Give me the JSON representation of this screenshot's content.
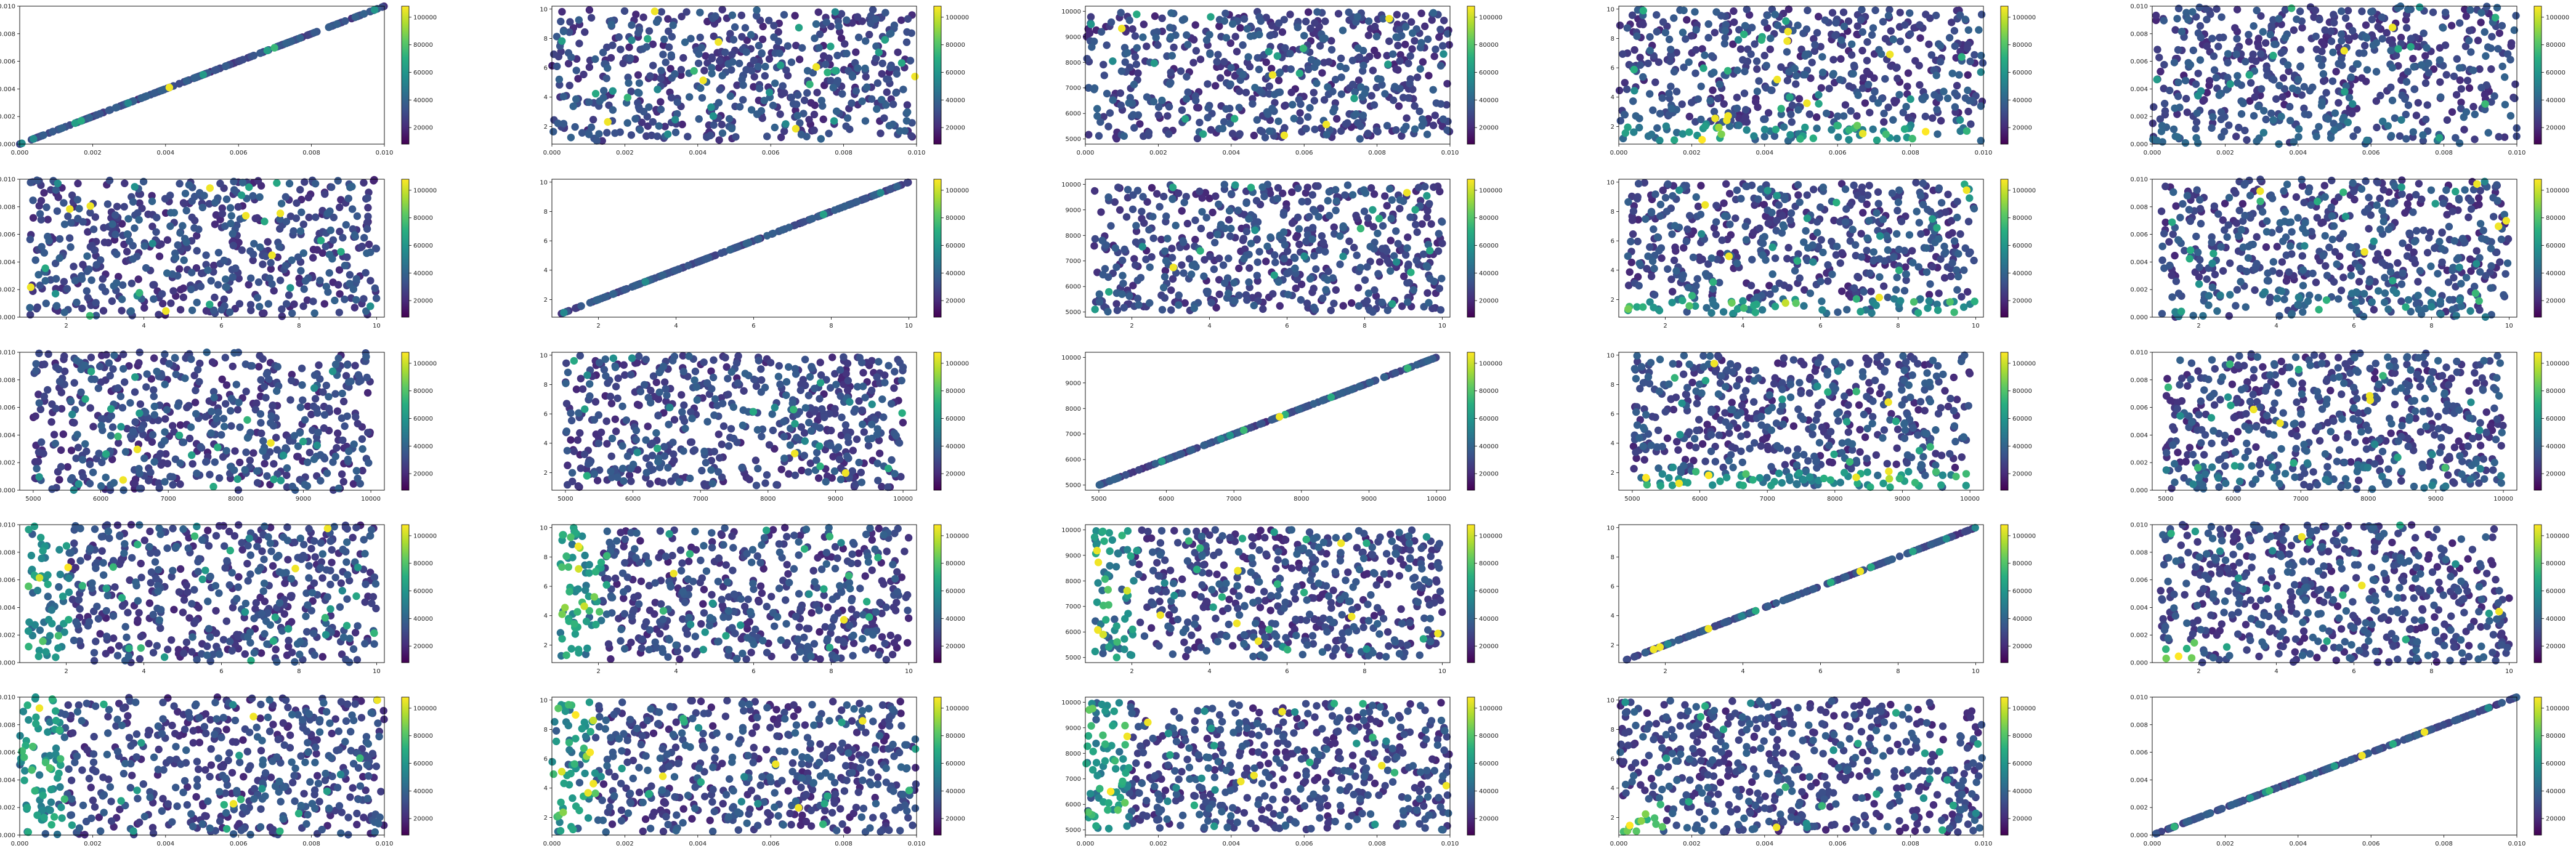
{
  "figure": {
    "rows": 5,
    "cols": 5,
    "colormap": "viridis",
    "colors": {
      "axes_edge": "#000000",
      "background": "#ffffff"
    }
  },
  "colorbar": {
    "min": 8000,
    "max": 108000,
    "ticks": [
      20000,
      40000,
      60000,
      80000,
      100000
    ],
    "tick_labels": [
      "20000",
      "40000",
      "60000",
      "80000",
      "100000"
    ]
  },
  "variables": {
    "a": {
      "range": [
        0,
        0.01
      ],
      "ticks": [
        0.0,
        0.002,
        0.004,
        0.006,
        0.008,
        0.01
      ],
      "tick_labels": [
        "0.000",
        "0.002",
        "0.004",
        "0.006",
        "0.008",
        "0.010"
      ]
    },
    "b": {
      "range": [
        0.8,
        10.2
      ],
      "ticks": [
        2,
        4,
        6,
        8,
        10
      ],
      "tick_labels": [
        "2",
        "4",
        "6",
        "8",
        "10"
      ]
    },
    "c": {
      "range": [
        4800,
        10200
      ],
      "ticks": [
        5000,
        6000,
        7000,
        8000,
        9000,
        10000
      ],
      "tick_labels": [
        "5000",
        "6000",
        "7000",
        "8000",
        "9000",
        "10000"
      ]
    },
    "d": {
      "range": [
        0.8,
        10.2
      ],
      "ticks": [
        2,
        4,
        6,
        8,
        10
      ],
      "tick_labels": [
        "2",
        "4",
        "6",
        "8",
        "10"
      ]
    },
    "e": {
      "range": [
        0,
        0.01
      ],
      "ticks": [
        0.0,
        0.002,
        0.004,
        0.006,
        0.008,
        0.01
      ],
      "tick_labels": [
        "0.000",
        "0.002",
        "0.004",
        "0.006",
        "0.008",
        "0.010"
      ]
    }
  },
  "chart_data": {
    "type": "scatter",
    "description": "5x5 scatter-plot matrix; x variable = column, y variable = row index per panel; point color = fifth quantity (colorbar)",
    "panels": [
      {
        "row": 0,
        "col": 0,
        "x_var": "a",
        "y_var": "a",
        "pattern": "diagonal"
      },
      {
        "row": 0,
        "col": 1,
        "x_var": "a",
        "y_var": "b",
        "pattern": "uniform"
      },
      {
        "row": 0,
        "col": 2,
        "x_var": "a",
        "y_var": "c",
        "pattern": "uniform"
      },
      {
        "row": 0,
        "col": 3,
        "x_var": "a",
        "y_var": "d",
        "pattern": "low_y_high"
      },
      {
        "row": 0,
        "col": 4,
        "x_var": "a",
        "y_var": "e",
        "pattern": "uniform_low_y"
      },
      {
        "row": 1,
        "col": 0,
        "x_var": "b",
        "y_var": "a",
        "pattern": "uniform"
      },
      {
        "row": 1,
        "col": 1,
        "x_var": "b",
        "y_var": "b",
        "pattern": "diagonal"
      },
      {
        "row": 1,
        "col": 2,
        "x_var": "b",
        "y_var": "c",
        "pattern": "uniform"
      },
      {
        "row": 1,
        "col": 3,
        "x_var": "b",
        "y_var": "d",
        "pattern": "low_y_high"
      },
      {
        "row": 1,
        "col": 4,
        "x_var": "b",
        "y_var": "e",
        "pattern": "uniform_low_y"
      },
      {
        "row": 2,
        "col": 0,
        "x_var": "c",
        "y_var": "a",
        "pattern": "uniform"
      },
      {
        "row": 2,
        "col": 1,
        "x_var": "c",
        "y_var": "b",
        "pattern": "uniform"
      },
      {
        "row": 2,
        "col": 2,
        "x_var": "c",
        "y_var": "c",
        "pattern": "diagonal"
      },
      {
        "row": 2,
        "col": 3,
        "x_var": "c",
        "y_var": "d",
        "pattern": "low_y_high"
      },
      {
        "row": 2,
        "col": 4,
        "x_var": "c",
        "y_var": "e",
        "pattern": "uniform_low_y"
      },
      {
        "row": 3,
        "col": 0,
        "x_var": "d",
        "y_var": "a",
        "pattern": "low_x_high"
      },
      {
        "row": 3,
        "col": 1,
        "x_var": "d",
        "y_var": "b",
        "pattern": "low_x_high"
      },
      {
        "row": 3,
        "col": 2,
        "x_var": "d",
        "y_var": "c",
        "pattern": "low_x_high"
      },
      {
        "row": 3,
        "col": 3,
        "x_var": "d",
        "y_var": "d",
        "pattern": "diagonal"
      },
      {
        "row": 3,
        "col": 4,
        "x_var": "d",
        "y_var": "e",
        "pattern": "corner_low"
      },
      {
        "row": 4,
        "col": 0,
        "x_var": "e",
        "y_var": "a",
        "pattern": "low_x_high"
      },
      {
        "row": 4,
        "col": 1,
        "x_var": "e",
        "y_var": "b",
        "pattern": "low_x_high"
      },
      {
        "row": 4,
        "col": 2,
        "x_var": "e",
        "y_var": "c",
        "pattern": "low_x_high"
      },
      {
        "row": 4,
        "col": 3,
        "x_var": "e",
        "y_var": "d",
        "pattern": "corner_low"
      },
      {
        "row": 4,
        "col": 4,
        "x_var": "e",
        "y_var": "e",
        "pattern": "diagonal"
      }
    ]
  }
}
